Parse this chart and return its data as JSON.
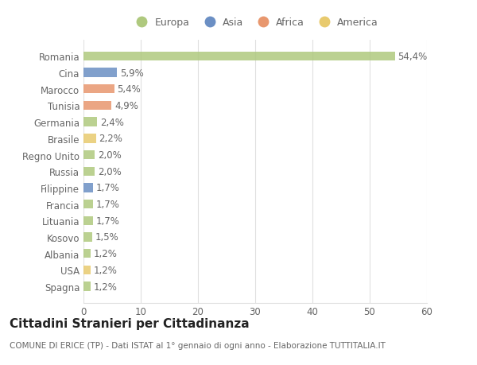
{
  "countries": [
    "Romania",
    "Cina",
    "Marocco",
    "Tunisia",
    "Germania",
    "Brasile",
    "Regno Unito",
    "Russia",
    "Filippine",
    "Francia",
    "Lituania",
    "Kosovo",
    "Albania",
    "USA",
    "Spagna"
  ],
  "values": [
    54.4,
    5.9,
    5.4,
    4.9,
    2.4,
    2.2,
    2.0,
    2.0,
    1.7,
    1.7,
    1.7,
    1.5,
    1.2,
    1.2,
    1.2
  ],
  "labels": [
    "54,4%",
    "5,9%",
    "5,4%",
    "4,9%",
    "2,4%",
    "2,2%",
    "2,0%",
    "2,0%",
    "1,7%",
    "1,7%",
    "1,7%",
    "1,5%",
    "1,2%",
    "1,2%",
    "1,2%"
  ],
  "categories": [
    "Europa",
    "Asia",
    "Africa",
    "Africa",
    "Europa",
    "America",
    "Europa",
    "Europa",
    "Asia",
    "Europa",
    "Europa",
    "Europa",
    "Europa",
    "America",
    "Europa"
  ],
  "colors": {
    "Europa": "#afc97e",
    "Asia": "#6b8fc4",
    "Africa": "#e8976e",
    "America": "#e8ca6e"
  },
  "title": "Cittadini Stranieri per Cittadinanza",
  "subtitle": "COMUNE DI ERICE (TP) - Dati ISTAT al 1° gennaio di ogni anno - Elaborazione TUTTITALIA.IT",
  "xlim": [
    0,
    60
  ],
  "xticks": [
    0,
    10,
    20,
    30,
    40,
    50,
    60
  ],
  "bg_color": "#ffffff",
  "grid_color": "#e0e0e0",
  "bar_height": 0.55,
  "label_fontsize": 8.5,
  "tick_fontsize": 8.5,
  "title_fontsize": 11,
  "subtitle_fontsize": 7.5
}
